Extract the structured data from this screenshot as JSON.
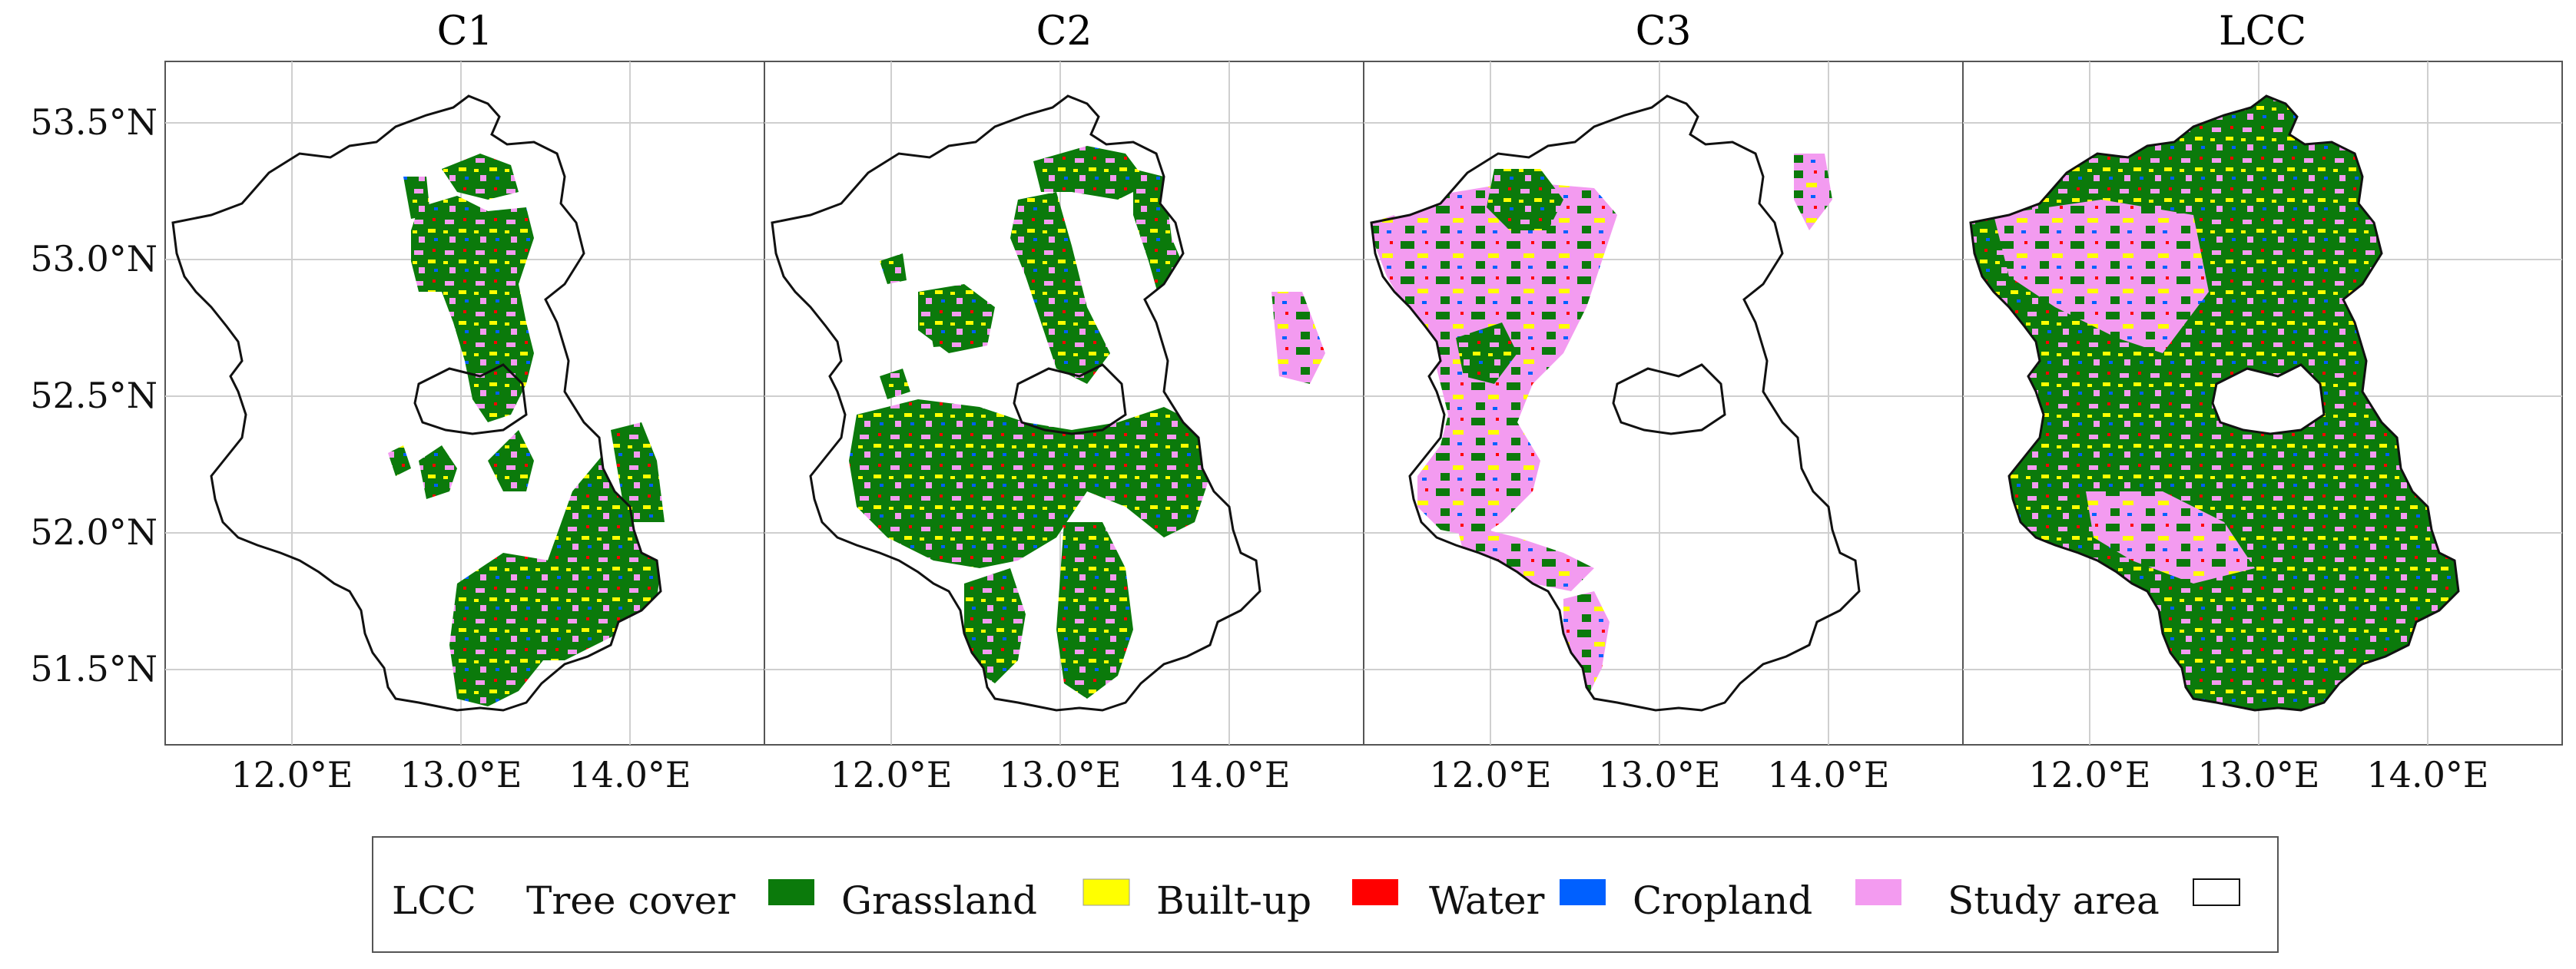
{
  "figure": {
    "panels": [
      {
        "title": "C1"
      },
      {
        "title": "C2"
      },
      {
        "title": "C3"
      },
      {
        "title": "LCC"
      }
    ],
    "lat_ticks": [
      "53.5°N",
      "53.0°N",
      "52.5°N",
      "52.0°N",
      "51.5°N"
    ],
    "lon_ticks": [
      "12.0°E",
      "13.0°E",
      "14.0°E"
    ]
  },
  "legend": {
    "title": "LCC",
    "items": [
      {
        "label": "Tree cover",
        "color": "#0b7a0b"
      },
      {
        "label": "Grassland",
        "color": "#ffff00"
      },
      {
        "label": "Built-up",
        "color": "#ff0000"
      },
      {
        "label": "Water",
        "color": "#0060ff"
      },
      {
        "label": "Cropland",
        "color": "#f39bf0"
      },
      {
        "label": "Study area",
        "color": "#ffffff"
      }
    ]
  },
  "colors": {
    "tree": "#0b7a0b",
    "grass": "#ffff00",
    "built": "#ff0000",
    "water": "#0060ff",
    "crop": "#f39bf0",
    "outline": "#111111",
    "grid": "#cfcfcf",
    "frame": "#555555"
  }
}
